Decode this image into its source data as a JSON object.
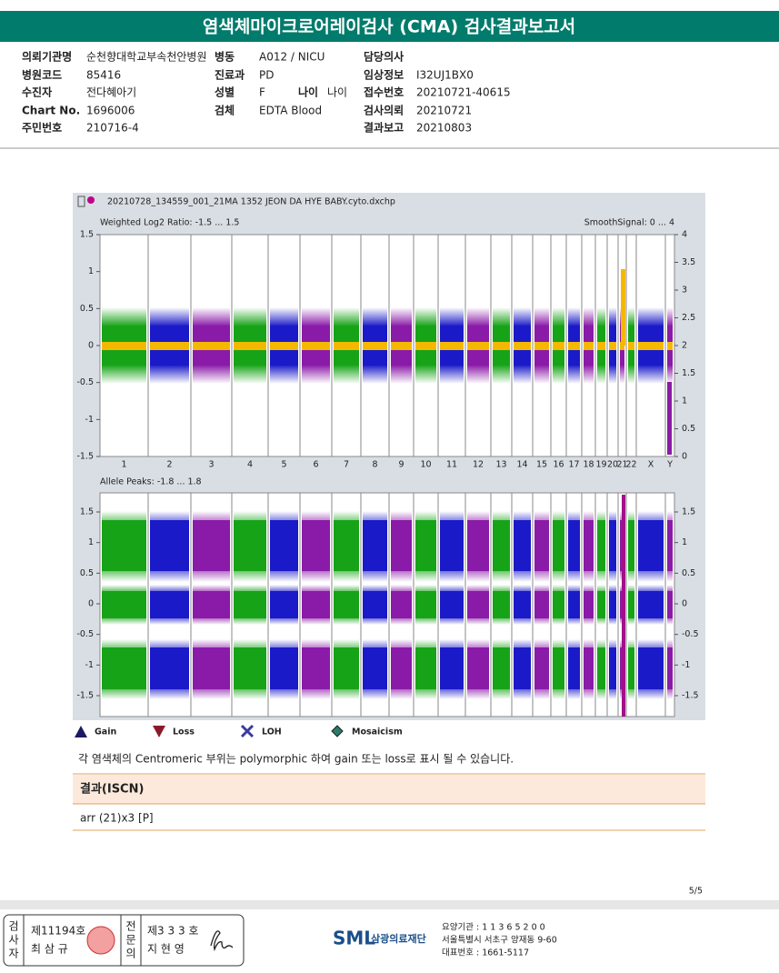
{
  "header": {
    "title": "염색체마이크로어레이검사 (CMA) 검사결과보고서"
  },
  "info": {
    "rows": [
      [
        [
          "의뢰기관명",
          "순천향대학교부속천안병원"
        ],
        [
          "병동",
          "A012 / NICU"
        ],
        [
          "담당의사",
          ""
        ]
      ],
      [
        [
          "병원코드",
          "85416"
        ],
        [
          "진료과",
          "PD"
        ],
        [
          "임상정보",
          "I32UJ1BX0"
        ]
      ],
      [
        [
          "수진자",
          "전다혜아기"
        ],
        [
          "성별",
          "F"
        ],
        [
          "접수번호",
          "20210721-40615"
        ]
      ],
      [
        [
          "Chart No.",
          "1696006"
        ],
        [
          "검체",
          "EDTA Blood"
        ],
        [
          "검사의뢰",
          "20210721"
        ]
      ],
      [
        [
          "주민번호",
          "210716-4"
        ],
        [
          "",
          ""
        ],
        [
          "결과보고",
          "20210803"
        ]
      ]
    ],
    "age": [
      "나이",
      "나이"
    ]
  },
  "plot": {
    "file": "20210728_134559_001_21MA 1352 JEON DA HYE BABY.cyto.dxchp",
    "top": {
      "label": "Weighted Log2 Ratio: -1.5 ... 1.5",
      "right_label": "SmoothSignal: 0 ... 4",
      "left_ticks": [
        "1.5",
        "1",
        "0.5",
        "0",
        "-0.5",
        "-1",
        "-1.5"
      ],
      "right_ticks": [
        "4",
        "3.5",
        "3",
        "2.5",
        "2",
        "1.5",
        "1",
        "0.5",
        "0"
      ]
    },
    "bottom": {
      "label": "Allele Peaks: -1.8 ... 1.8",
      "left_ticks": [
        "1.5",
        "1",
        "0.5",
        "0",
        "-0.5",
        "-1",
        "-1.5"
      ],
      "right_ticks": [
        "1.5",
        "1",
        "0.5",
        "0",
        "-0.5",
        "-1",
        "-1.5"
      ]
    },
    "chromosomes": [
      "1",
      "2",
      "3",
      "4",
      "5",
      "6",
      "7",
      "8",
      "9",
      "10",
      "11",
      "12",
      "13",
      "14",
      "15",
      "16",
      "17",
      "18",
      "19",
      "20",
      "21",
      "22",
      "X",
      "Y"
    ]
  },
  "legend": [
    "Gain",
    "Loss",
    "LOH",
    "Mosaicism"
  ],
  "note": "각 염색체의 Centromeric 부위는 polymorphic 하여 gain 또는 loss로 표시 될 수 있습니다.",
  "result": {
    "title": "결과(ISCN)",
    "value": "arr (21)x3 [P]"
  },
  "page": "5/5",
  "footer": {
    "tester_label": "검사자",
    "tester_no": "제11194호",
    "tester_name": "최 삼 규",
    "doctor_label": "전문의",
    "doctor_no": "제3 3 3 호",
    "doctor_name": "지 현 영",
    "logo": "SML",
    "org": "삼광의료재단",
    "lines": [
      "요양기관 : 1 1 3 6 5 2 0 0",
      "서울특별시 서초구 양재동 9-60",
      "대표번호 : 1661-5117"
    ]
  }
}
